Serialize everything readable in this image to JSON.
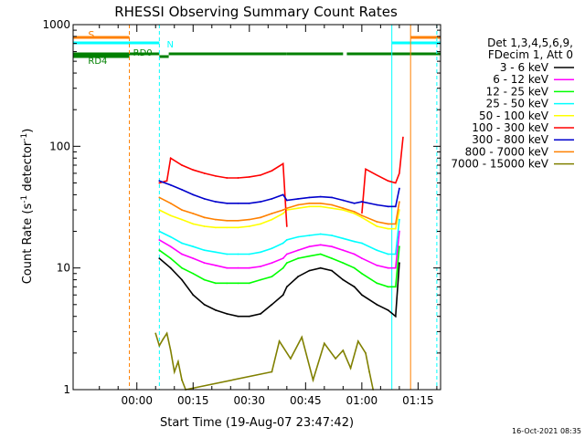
{
  "chart_data": {
    "type": "line",
    "title": "RHESSI Observing Summary Count Rates",
    "xlabel": "Start Time (19-Aug-07 23:47:42)",
    "ylabel": "Count Rate (s",
    "ylabel_sup": "-1",
    "ylabel_rest": " detector",
    "ylabel_close": ")",
    "y_scale": "log",
    "ylim": [
      1,
      1000
    ],
    "xlim_minutes": [
      -17,
      81
    ],
    "x_ticks": [
      {
        "min": 0,
        "label": "00:00"
      },
      {
        "min": 15,
        "label": "00:15"
      },
      {
        "min": 30,
        "label": "00:30"
      },
      {
        "min": 45,
        "label": "00:45"
      },
      {
        "min": 60,
        "label": "01:00"
      },
      {
        "min": 75,
        "label": "01:15"
      }
    ],
    "y_ticks": [
      {
        "value": 1,
        "label": "1"
      },
      {
        "value": 10,
        "label": "10"
      },
      {
        "value": 100,
        "label": "100"
      },
      {
        "value": 1000,
        "label": "1000"
      }
    ],
    "legend": {
      "header1": "Det 1,3,4,5,6,9,",
      "header2": "FDecim 1, Att 0",
      "placement": "right"
    },
    "series": [
      {
        "name": "3 - 6 keV",
        "color": "#000000",
        "x": [
          6,
          9,
          12,
          15,
          18,
          21,
          24,
          27,
          30,
          33,
          36,
          39,
          40,
          43,
          46,
          49,
          52,
          55,
          58,
          60,
          64,
          67,
          69,
          70
        ],
        "y": [
          12,
          10,
          8,
          6,
          5,
          4.5,
          4.2,
          4,
          4,
          4.2,
          5,
          6,
          7,
          8.5,
          9.5,
          10,
          9.5,
          8,
          7,
          6,
          5,
          4.5,
          4,
          11
        ]
      },
      {
        "name": "6 - 12 keV",
        "color": "#ff00ff",
        "x": [
          6,
          9,
          12,
          15,
          18,
          21,
          24,
          27,
          30,
          33,
          36,
          39,
          40,
          43,
          46,
          49,
          52,
          55,
          58,
          60,
          64,
          67,
          69,
          70
        ],
        "y": [
          17,
          15,
          13,
          12,
          11,
          10.5,
          10,
          10,
          10,
          10.3,
          11,
          12,
          13,
          14,
          15,
          15.5,
          15,
          14,
          13,
          12,
          10.5,
          10,
          10,
          20
        ]
      },
      {
        "name": "12 - 25 keV",
        "color": "#00ff00",
        "x": [
          6,
          9,
          12,
          15,
          18,
          21,
          24,
          27,
          30,
          33,
          36,
          39,
          40,
          43,
          46,
          49,
          52,
          55,
          58,
          60,
          64,
          67,
          69,
          70
        ],
        "y": [
          14,
          12,
          10,
          9,
          8,
          7.5,
          7.5,
          7.5,
          7.5,
          8,
          8.5,
          10,
          11,
          12,
          12.5,
          13,
          12,
          11,
          10,
          9,
          7.5,
          7,
          7,
          15
        ]
      },
      {
        "name": "25 - 50 keV",
        "color": "#00ffff",
        "x": [
          6,
          9,
          12,
          15,
          18,
          21,
          24,
          27,
          30,
          33,
          36,
          39,
          40,
          43,
          46,
          49,
          52,
          55,
          58,
          60,
          64,
          67,
          69,
          70
        ],
        "y": [
          20,
          18,
          16,
          15,
          14,
          13.5,
          13,
          13,
          13,
          13.5,
          14.5,
          16,
          17,
          18,
          18.5,
          19,
          18.5,
          17.5,
          16.5,
          16,
          14,
          13,
          13,
          25
        ]
      },
      {
        "name": "50 - 100 keV",
        "color": "#ffff00",
        "x": [
          6,
          9,
          12,
          15,
          18,
          21,
          24,
          27,
          30,
          33,
          36,
          39,
          40,
          43,
          46,
          49,
          52,
          55,
          58,
          60,
          64,
          67,
          69,
          70
        ],
        "y": [
          30,
          27,
          25,
          23,
          22,
          21.5,
          21.5,
          21.5,
          22,
          23,
          25,
          28,
          30,
          31,
          32,
          32,
          31,
          30,
          28,
          26,
          22,
          21,
          21,
          30
        ]
      },
      {
        "name": "100 - 300 keV",
        "color": "#ff0000",
        "x": [
          6,
          8,
          9,
          12,
          15,
          18,
          21,
          24,
          27,
          30,
          33,
          36,
          39,
          40
        ],
        "y": [
          50,
          52,
          80,
          70,
          64,
          60,
          57,
          55,
          55,
          56,
          58,
          63,
          72,
          22
        ],
        "x2": [
          60,
          61,
          64,
          67,
          69,
          70,
          71
        ],
        "y2": [
          28,
          65,
          58,
          52,
          50,
          60,
          120
        ]
      },
      {
        "name": "300 - 800 keV",
        "color": "#0000cc",
        "x": [
          6,
          9,
          12,
          15,
          18,
          21,
          24,
          27,
          30,
          33,
          36,
          39,
          40,
          43,
          46,
          49,
          52,
          55,
          58,
          60,
          64,
          67,
          69,
          70
        ],
        "y": [
          52,
          48,
          44,
          40,
          37,
          35,
          34,
          34,
          34,
          35,
          37,
          40,
          36,
          37,
          38,
          38.5,
          38,
          36,
          34,
          35,
          33,
          32,
          32,
          45
        ]
      },
      {
        "name": "800 - 7000 keV",
        "color": "#ff8000",
        "x": [
          6,
          9,
          12,
          15,
          18,
          21,
          24,
          27,
          30,
          33,
          36,
          39,
          40,
          43,
          46,
          49,
          52,
          55,
          58,
          60,
          64,
          67,
          69,
          70
        ],
        "y": [
          38,
          34,
          30,
          28,
          26,
          25,
          24.5,
          24.5,
          25,
          26,
          28,
          30,
          31,
          33,
          34,
          34,
          33,
          31,
          29,
          27,
          24,
          23,
          23,
          35
        ]
      },
      {
        "name": "7000 - 15000 keV",
        "color": "#808000",
        "x": [
          5,
          6,
          7,
          8,
          9,
          10,
          11,
          12,
          13,
          36,
          38,
          41,
          44,
          47,
          50,
          53,
          55,
          57,
          59,
          61,
          62,
          63
        ],
        "y": [
          2.9,
          2.3,
          2.6,
          2.9,
          2.1,
          1.4,
          1.7,
          1.2,
          1.0,
          1.4,
          2.5,
          1.8,
          2.7,
          1.2,
          2.4,
          1.8,
          2.1,
          1.5,
          2.5,
          2.0,
          1.4,
          1.0
        ]
      }
    ],
    "flags": [
      {
        "name": "S",
        "color": "#ff8000",
        "segments": [
          [
            -17,
            -2
          ],
          [
            73,
            81
          ]
        ]
      },
      {
        "name": "N",
        "color": "#00ffff",
        "segments": [
          [
            -17,
            6
          ],
          [
            68,
            81
          ]
        ]
      },
      {
        "name": "RD0",
        "color": "#008000",
        "segments": [
          [
            -17,
            6
          ],
          [
            8.5,
            40
          ],
          [
            40,
            55
          ],
          [
            56,
            81
          ]
        ]
      },
      {
        "name": "RD4",
        "color": "#008000",
        "segments": [
          [
            -17,
            -2
          ],
          [
            6,
            8.5
          ]
        ]
      }
    ],
    "vlines": [
      {
        "min": -17,
        "color": "#00ffff",
        "dash": false
      },
      {
        "min": -2,
        "color": "#ff8000",
        "dash": true
      },
      {
        "min": 6,
        "color": "#00ffff",
        "dash": true
      },
      {
        "min": 68,
        "color": "#00ffff",
        "dash": false
      },
      {
        "min": 73,
        "color": "#ff8000",
        "dash": false
      },
      {
        "min": 80,
        "color": "#00ffff",
        "dash": true
      }
    ]
  },
  "footer": {
    "date": "16-Oct-2021 08:35"
  }
}
